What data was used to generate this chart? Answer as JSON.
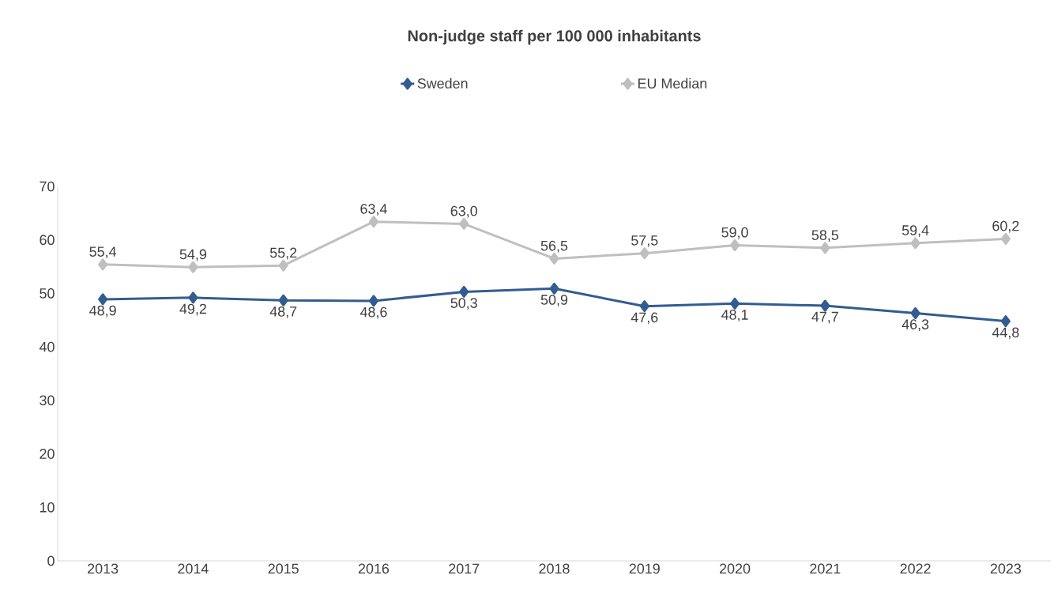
{
  "chart_data": {
    "type": "line",
    "title": "Non-judge staff per 100 000 inhabitants",
    "categories": [
      "2013",
      "2014",
      "2015",
      "2016",
      "2017",
      "2018",
      "2019",
      "2020",
      "2021",
      "2022",
      "2023"
    ],
    "series": [
      {
        "name": "Sweden",
        "color": "#335c91",
        "values": [
          48.9,
          49.2,
          48.7,
          48.6,
          50.3,
          50.9,
          47.6,
          48.1,
          47.7,
          46.3,
          44.8
        ],
        "value_labels": [
          "48,9",
          "49,2",
          "48,7",
          "48,6",
          "50,3",
          "50,9",
          "47,6",
          "48,1",
          "47,7",
          "46,3",
          "44,8"
        ]
      },
      {
        "name": "EU Median",
        "color": "#bfbfbf",
        "values": [
          55.4,
          54.9,
          55.2,
          63.4,
          63.0,
          56.5,
          57.5,
          59.0,
          58.5,
          59.4,
          60.2
        ],
        "value_labels": [
          "55,4",
          "54,9",
          "55,2",
          "63,4",
          "63,0",
          "56,5",
          "57,5",
          "59,0",
          "58,5",
          "59,4",
          "60,2"
        ]
      }
    ],
    "ylim": [
      0,
      70
    ],
    "yticks": [
      0,
      10,
      20,
      30,
      40,
      50,
      60,
      70
    ],
    "grid": false,
    "legend": "top",
    "marker": "diamond",
    "line_style": "solid"
  }
}
